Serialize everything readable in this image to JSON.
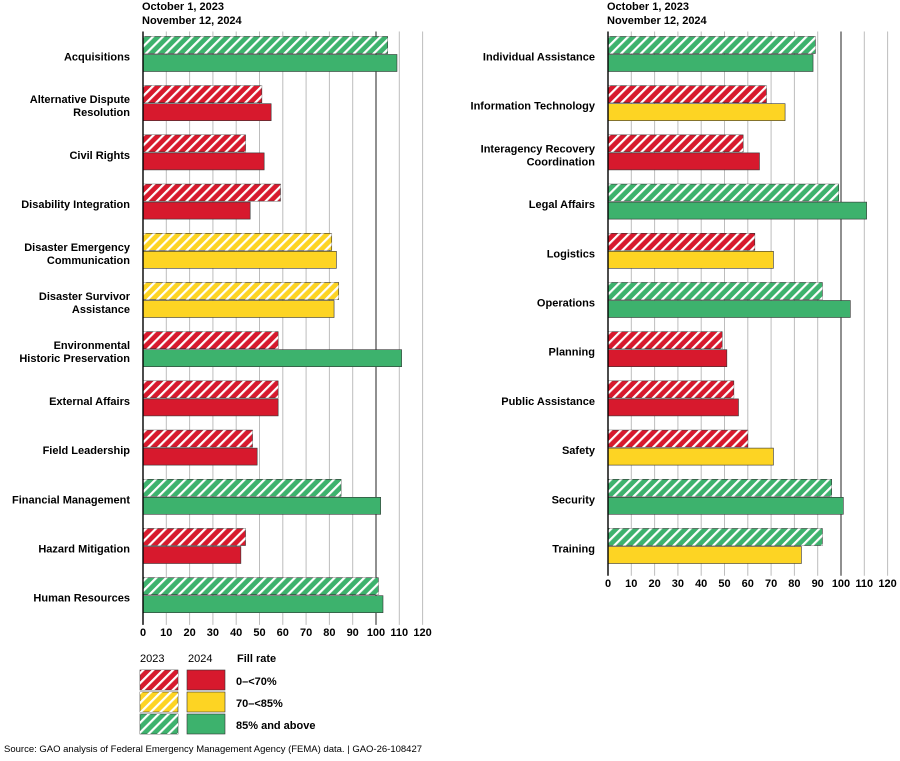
{
  "header": {
    "line1": "October 1, 2023",
    "line2": "November 12, 2024"
  },
  "legend": {
    "year_a": "2023",
    "year_b": "2024",
    "title": "Fill rate",
    "items": [
      {
        "label": "0–<70%",
        "color": "#d7192d"
      },
      {
        "label": "70–<85%",
        "color": "#fdd423"
      },
      {
        "label": "85% and above",
        "color": "#3db26d"
      }
    ]
  },
  "source": "Source: GAO analysis of Federal Emergency Management Agency (FEMA) data.  |  GAO-26-108427",
  "colors": {
    "red": "#d7192d",
    "yellow": "#fdd423",
    "green": "#3db26d"
  },
  "chart_data": [
    {
      "type": "bar",
      "orientation": "horizontal",
      "xlim": [
        0,
        120
      ],
      "xticks": [
        0,
        10,
        20,
        30,
        40,
        50,
        60,
        70,
        80,
        90,
        100,
        110,
        120
      ],
      "series": [
        {
          "name": "2023"
        },
        {
          "name": "2024"
        }
      ],
      "categories": [
        {
          "label": [
            "Acquisitions"
          ],
          "v2023": 105,
          "v2024": 109
        },
        {
          "label": [
            "Alternative Dispute",
            "Resolution"
          ],
          "v2023": 51,
          "v2024": 55
        },
        {
          "label": [
            "Civil Rights"
          ],
          "v2023": 44,
          "v2024": 52
        },
        {
          "label": [
            "Disability Integration"
          ],
          "v2023": 59,
          "v2024": 46
        },
        {
          "label": [
            "Disaster Emergency",
            "Communication"
          ],
          "v2023": 81,
          "v2024": 83
        },
        {
          "label": [
            "Disaster Survivor",
            "Assistance"
          ],
          "v2023": 84,
          "v2024": 82
        },
        {
          "label": [
            "Environmental",
            "Historic Preservation"
          ],
          "v2023": 58,
          "v2024": 111
        },
        {
          "label": [
            "External Affairs"
          ],
          "v2023": 58,
          "v2024": 58
        },
        {
          "label": [
            "Field Leadership"
          ],
          "v2023": 47,
          "v2024": 49
        },
        {
          "label": [
            "Financial Management"
          ],
          "v2023": 85,
          "v2024": 102
        },
        {
          "label": [
            "Hazard Mitigation"
          ],
          "v2023": 44,
          "v2024": 42
        },
        {
          "label": [
            "Human Resources"
          ],
          "v2023": 101,
          "v2024": 103
        }
      ]
    },
    {
      "type": "bar",
      "orientation": "horizontal",
      "xlim": [
        0,
        120
      ],
      "xticks": [
        0,
        10,
        20,
        30,
        40,
        50,
        60,
        70,
        80,
        90,
        100,
        110,
        120
      ],
      "series": [
        {
          "name": "2023"
        },
        {
          "name": "2024"
        }
      ],
      "categories": [
        {
          "label": [
            "Individual Assistance"
          ],
          "v2023": 89,
          "v2024": 88
        },
        {
          "label": [
            "Information Technology"
          ],
          "v2023": 68,
          "v2024": 76
        },
        {
          "label": [
            "Interagency Recovery",
            "Coordination"
          ],
          "v2023": 58,
          "v2024": 65
        },
        {
          "label": [
            "Legal Affairs"
          ],
          "v2023": 99,
          "v2024": 111
        },
        {
          "label": [
            "Logistics"
          ],
          "v2023": 63,
          "v2024": 71
        },
        {
          "label": [
            "Operations"
          ],
          "v2023": 92,
          "v2024": 104
        },
        {
          "label": [
            "Planning"
          ],
          "v2023": 49,
          "v2024": 51
        },
        {
          "label": [
            "Public Assistance"
          ],
          "v2023": 54,
          "v2024": 56
        },
        {
          "label": [
            "Safety"
          ],
          "v2023": 60,
          "v2024": 71
        },
        {
          "label": [
            "Security"
          ],
          "v2023": 96,
          "v2024": 101
        },
        {
          "label": [
            "Training"
          ],
          "v2023": 92,
          "v2024": 83
        }
      ]
    }
  ]
}
